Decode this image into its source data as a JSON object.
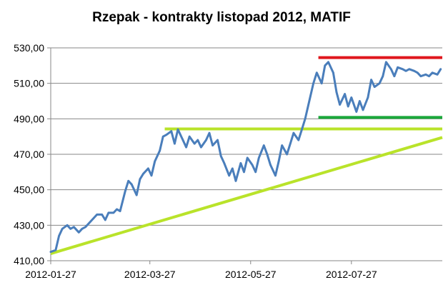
{
  "chart_data": {
    "type": "line",
    "title": "Rzepak - kontrakty listopad 2012, MATIF",
    "xlabel": "",
    "ylabel": "",
    "ylim": [
      410,
      530
    ],
    "y_ticks": [
      "410,00",
      "430,00",
      "450,00",
      "470,00",
      "490,00",
      "510,00",
      "530,00"
    ],
    "x_ticks": [
      {
        "date": "2012-01-27",
        "label": "2012-01-27"
      },
      {
        "date": "2012-03-27",
        "label": "2012-03-27"
      },
      {
        "date": "2012-05-27",
        "label": "2012-05-27"
      },
      {
        "date": "2012-07-27",
        "label": "2012-07-27"
      }
    ],
    "x_range": [
      "2012-01-27",
      "2012-09-20"
    ],
    "grid": "horizontal",
    "legend": "none",
    "series": [
      {
        "color": "#4a7ebb",
        "points": [
          [
            "2012-01-27",
            415
          ],
          [
            "2012-01-30",
            416
          ],
          [
            "2012-02-01",
            424
          ],
          [
            "2012-02-03",
            428
          ],
          [
            "2012-02-06",
            430
          ],
          [
            "2012-02-08",
            428
          ],
          [
            "2012-02-10",
            429
          ],
          [
            "2012-02-13",
            426
          ],
          [
            "2012-02-15",
            428
          ],
          [
            "2012-02-17",
            429
          ],
          [
            "2012-02-20",
            432
          ],
          [
            "2012-02-22",
            434
          ],
          [
            "2012-02-24",
            436
          ],
          [
            "2012-02-27",
            436
          ],
          [
            "2012-02-29",
            433
          ],
          [
            "2012-03-02",
            437
          ],
          [
            "2012-03-05",
            437
          ],
          [
            "2012-03-07",
            439
          ],
          [
            "2012-03-09",
            438
          ],
          [
            "2012-03-12",
            449
          ],
          [
            "2012-03-14",
            455
          ],
          [
            "2012-03-16",
            453
          ],
          [
            "2012-03-19",
            447
          ],
          [
            "2012-03-21",
            456
          ],
          [
            "2012-03-23",
            459
          ],
          [
            "2012-03-26",
            462
          ],
          [
            "2012-03-28",
            458
          ],
          [
            "2012-03-30",
            466
          ],
          [
            "2012-04-02",
            472
          ],
          [
            "2012-04-04",
            480
          ],
          [
            "2012-04-06",
            481
          ],
          [
            "2012-04-09",
            483
          ],
          [
            "2012-04-11",
            476
          ],
          [
            "2012-04-13",
            484
          ],
          [
            "2012-04-16",
            478
          ],
          [
            "2012-04-18",
            474
          ],
          [
            "2012-04-20",
            480
          ],
          [
            "2012-04-23",
            476
          ],
          [
            "2012-04-25",
            478
          ],
          [
            "2012-04-27",
            474
          ],
          [
            "2012-04-30",
            478
          ],
          [
            "2012-05-02",
            482
          ],
          [
            "2012-05-04",
            475
          ],
          [
            "2012-05-07",
            478
          ],
          [
            "2012-05-09",
            469
          ],
          [
            "2012-05-11",
            465
          ],
          [
            "2012-05-14",
            458
          ],
          [
            "2012-05-16",
            462
          ],
          [
            "2012-05-18",
            455
          ],
          [
            "2012-05-21",
            465
          ],
          [
            "2012-05-23",
            460
          ],
          [
            "2012-05-25",
            468
          ],
          [
            "2012-05-28",
            464
          ],
          [
            "2012-05-30",
            460
          ],
          [
            "2012-06-01",
            468
          ],
          [
            "2012-06-04",
            475
          ],
          [
            "2012-06-06",
            470
          ],
          [
            "2012-06-08",
            464
          ],
          [
            "2012-06-11",
            458
          ],
          [
            "2012-06-13",
            466
          ],
          [
            "2012-06-15",
            475
          ],
          [
            "2012-06-18",
            470
          ],
          [
            "2012-06-20",
            476
          ],
          [
            "2012-06-22",
            482
          ],
          [
            "2012-06-25",
            478
          ],
          [
            "2012-06-27",
            484
          ],
          [
            "2012-06-29",
            490
          ],
          [
            "2012-07-02",
            502
          ],
          [
            "2012-07-04",
            510
          ],
          [
            "2012-07-06",
            516
          ],
          [
            "2012-07-09",
            510
          ],
          [
            "2012-07-11",
            520
          ],
          [
            "2012-07-13",
            522
          ],
          [
            "2012-07-16",
            516
          ],
          [
            "2012-07-18",
            505
          ],
          [
            "2012-07-20",
            498
          ],
          [
            "2012-07-23",
            504
          ],
          [
            "2012-07-25",
            497
          ],
          [
            "2012-07-27",
            502
          ],
          [
            "2012-07-30",
            494
          ],
          [
            "2012-08-01",
            500
          ],
          [
            "2012-08-03",
            495
          ],
          [
            "2012-08-06",
            502
          ],
          [
            "2012-08-08",
            512
          ],
          [
            "2012-08-10",
            508
          ],
          [
            "2012-08-13",
            510
          ],
          [
            "2012-08-15",
            514
          ],
          [
            "2012-08-17",
            522
          ],
          [
            "2012-08-20",
            518
          ],
          [
            "2012-08-22",
            514
          ],
          [
            "2012-08-24",
            519
          ],
          [
            "2012-08-27",
            518
          ],
          [
            "2012-08-29",
            517
          ],
          [
            "2012-08-31",
            518
          ],
          [
            "2012-09-03",
            517
          ],
          [
            "2012-09-05",
            516
          ],
          [
            "2012-09-07",
            514
          ],
          [
            "2012-09-10",
            515
          ],
          [
            "2012-09-12",
            514
          ],
          [
            "2012-09-14",
            516
          ],
          [
            "2012-09-17",
            515
          ],
          [
            "2012-09-19",
            518
          ]
        ]
      }
    ],
    "annotations": [
      {
        "kind": "resistance",
        "color": "#e0171d",
        "y": 524.5,
        "x_from": "2012-07-07",
        "x_to": "2012-09-20"
      },
      {
        "kind": "support",
        "color": "#1aa83a",
        "y": 490.8,
        "x_from": "2012-07-07",
        "x_to": "2012-09-20"
      },
      {
        "kind": "horizontal",
        "color": "#b9e32a",
        "y": 484.3,
        "x_from": "2012-04-05",
        "x_to": "2012-09-20"
      },
      {
        "kind": "trendline",
        "color": "#b9e32a",
        "from": [
          "2012-01-27",
          414
        ],
        "to": [
          "2012-09-20",
          479.5
        ]
      }
    ]
  }
}
